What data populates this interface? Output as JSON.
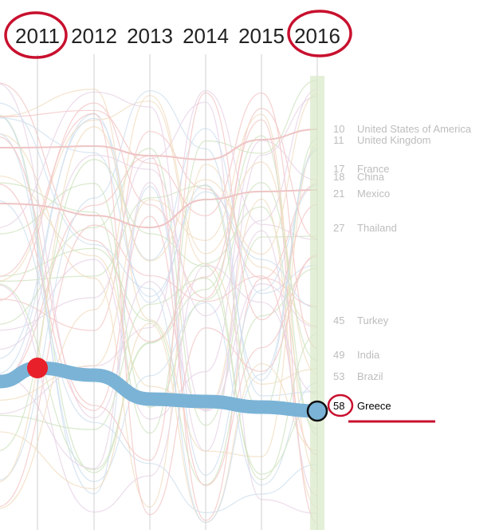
{
  "chart_data": {
    "type": "line",
    "subtype": "bump-chart (rank over time)",
    "x": [
      "2011",
      "2012",
      "2013",
      "2014",
      "2015",
      "2016"
    ],
    "y_scale": "rank (1 at top)",
    "highlighted_series": {
      "name": "Greece",
      "rank_2016": 58,
      "color": "#7ab3d6"
    },
    "labels_2016": [
      {
        "rank": 10,
        "name": "United States of America"
      },
      {
        "rank": 11,
        "name": "United Kingdom"
      },
      {
        "rank": 17,
        "name": "France"
      },
      {
        "rank": 18,
        "name": "China"
      },
      {
        "rank": 21,
        "name": "Mexico"
      },
      {
        "rank": 27,
        "name": "Thailand"
      },
      {
        "rank": 45,
        "name": "Turkey"
      },
      {
        "rank": 49,
        "name": "India"
      },
      {
        "rank": 53,
        "name": "Brazil"
      },
      {
        "rank": 58,
        "name": "Greece"
      }
    ],
    "annotations": [
      "2011 circled",
      "2016 circled",
      "58 circled",
      "red underline below Greece"
    ],
    "grid": true,
    "colors": {
      "highlight": "#7ab3d6",
      "annotation": "#c8102e",
      "start_dot": "#e8202a",
      "grid": "#cfcfcf"
    }
  }
}
